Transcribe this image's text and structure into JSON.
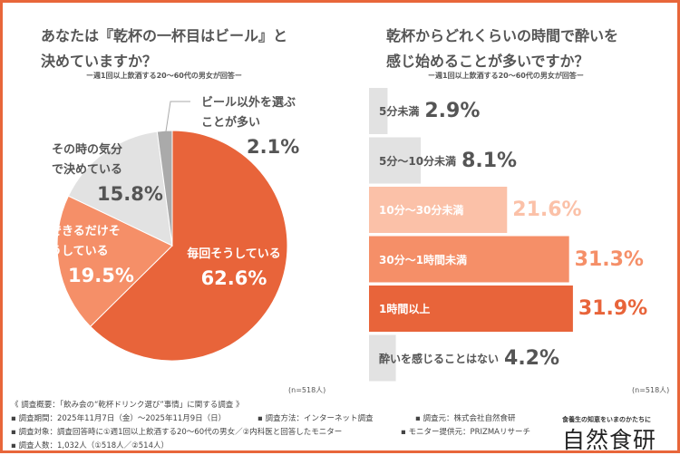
{
  "left": {
    "title_line1": "あなたは『乾杯の一杯目はビール』と",
    "title_line2": "決めていますか？",
    "subtitle": "ー週1回以上飲酒する20〜60代の男女が回答ー",
    "n": "(n=518人)"
  },
  "right": {
    "title_line1": "乾杯からどれくらいの時間で酔いを",
    "title_line2": "感じ始めることが多いですか？",
    "subtitle": "ー週1回以上飲酒する20〜60代の男女が回答ー",
    "n": "(n=518人)"
  },
  "chart_data": [
    {
      "type": "pie",
      "title": "あなたは『乾杯の一杯目はビール』と決めていますか？",
      "start": "top",
      "direction": "clockwise",
      "slices": [
        {
          "label": "毎回そうしている",
          "value": 62.6,
          "value_label": "62.6%",
          "color": "#e8643a"
        },
        {
          "label": "できるだけそうしている",
          "value": 19.5,
          "value_label": "19.5%",
          "color": "#f58f68"
        },
        {
          "label": "その時の気分で決めている",
          "value": 15.8,
          "value_label": "15.8%",
          "color": "#e2e2e2"
        },
        {
          "label": "ビール以外を選ぶことが多い",
          "value": 2.1,
          "value_label": "2.1%",
          "color": "#aaaaaa"
        }
      ]
    },
    {
      "type": "bar",
      "orientation": "horizontal",
      "title": "乾杯からどれくらいの時間で酔いを感じ始めることが多いですか？",
      "categories": [
        "5分未満",
        "5分〜10分未満",
        "10分〜30分未満",
        "30分〜1時間未満",
        "1時間以上",
        "酔いを感じることはない"
      ],
      "values": [
        2.9,
        8.1,
        21.6,
        31.3,
        31.9,
        4.2
      ],
      "value_labels": [
        "2.9%",
        "8.1%",
        "21.6%",
        "31.3%",
        "31.9%",
        "4.2%"
      ],
      "colors": [
        "#e2e2e2",
        "#e2e2e2",
        "#fbc1a8",
        "#f58f68",
        "#e8643a",
        "#e2e2e2"
      ],
      "label_colors": [
        "#555555",
        "#555555",
        "#ffffff",
        "#ffffff",
        "#ffffff",
        "#555555"
      ],
      "value_colors": [
        "#555555",
        "#555555",
        "#fbc1a8",
        "#f58f68",
        "#e8643a",
        "#555555"
      ]
    }
  ],
  "footer": {
    "overview": "《 調査概要：「飲み会の“乾杯ドリンク選び”事情」に関する調査 》",
    "period": "▪ 調査期間：2025年11月7日（金）〜2025年11月9日（日）",
    "method": "▪ 調査方法：インターネット調査",
    "source": "▪ 調査元：株式会社自然食研",
    "target": "▪ 調査対象：調査回答時に①週1回以上飲酒する20〜60代の男女／②内科医と回答したモニター",
    "provider": "▪ モニター提供元：PRIZMAリサーチ",
    "count": "▪ 調査人数：1,032人（①518人／②514人）"
  },
  "brand": {
    "tagline": "食養生の知恵をいまのかたちに",
    "name": "自然食研"
  }
}
